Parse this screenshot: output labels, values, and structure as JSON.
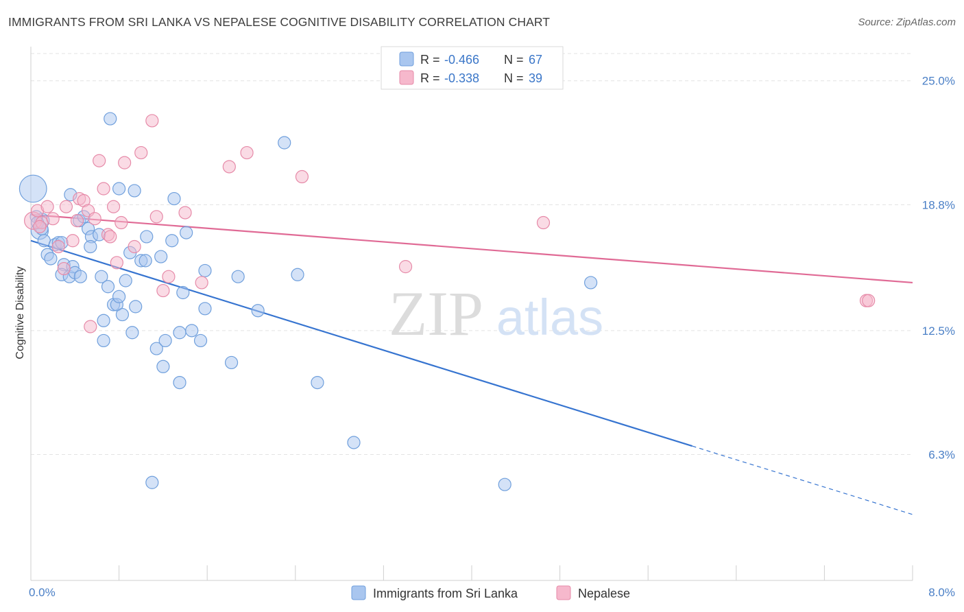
{
  "header": {
    "title": "IMMIGRANTS FROM SRI LANKA VS NEPALESE COGNITIVE DISABILITY CORRELATION CHART",
    "source": "Source: ZipAtlas.com"
  },
  "watermark": {
    "zip": "ZIP",
    "atlas": "atlas"
  },
  "colors": {
    "blue_fill": "#a9c6ef",
    "blue_stroke": "#6f9fdc",
    "blue_line": "#3674d0",
    "pink_fill": "#f6b8cc",
    "pink_stroke": "#e68aa8",
    "pink_line": "#e06a95",
    "grid": "#e3e3e3",
    "axis_text": "#4a7fc6"
  },
  "chart_data": {
    "type": "scatter",
    "xlabel": "",
    "ylabel": "Cognitive Disability",
    "xlim": [
      0.0,
      8.0
    ],
    "ylim": [
      0.0,
      26.5
    ],
    "x_tick_labels": [
      {
        "value": 0.0,
        "label": "0.0%"
      },
      {
        "value": 8.0,
        "label": "8.0%"
      }
    ],
    "y_tick_labels": [
      {
        "value": 6.3,
        "label": "6.3%"
      },
      {
        "value": 12.5,
        "label": "12.5%"
      },
      {
        "value": 18.8,
        "label": "18.8%"
      },
      {
        "value": 25.0,
        "label": "25.0%"
      }
    ],
    "grid": "horizontal-dashed",
    "legend": {
      "placement": "top-center",
      "entries": [
        {
          "r_label": "R =",
          "r_value": "-0.466",
          "n_label": "N =",
          "n_value": "67"
        },
        {
          "r_label": "R =",
          "r_value": "-0.338",
          "n_label": "N =",
          "n_value": "39"
        }
      ]
    },
    "series": [
      {
        "name": "Immigrants from Sri Lanka",
        "color": "#a9c6ef",
        "trend": {
          "x0": 0.0,
          "y0": 17.0,
          "x1": 8.0,
          "y1": 3.3,
          "solid_until_x": 6.0
        },
        "points": [
          [
            0.02,
            19.6,
            2.2
          ],
          [
            0.08,
            17.5,
            1.4
          ],
          [
            0.1,
            18.0,
            1.2
          ],
          [
            0.05,
            18.2,
            1.0
          ],
          [
            0.12,
            17.0,
            1.0
          ],
          [
            0.15,
            16.3,
            1.0
          ],
          [
            0.18,
            16.1,
            1.0
          ],
          [
            0.22,
            16.8,
            1.0
          ],
          [
            0.25,
            16.9,
            1.0
          ],
          [
            0.28,
            16.9,
            1.0
          ],
          [
            0.3,
            15.8,
            1.0
          ],
          [
            0.28,
            15.3,
            1.0
          ],
          [
            0.35,
            15.2,
            1.0
          ],
          [
            0.38,
            15.7,
            1.0
          ],
          [
            0.4,
            15.4,
            1.0
          ],
          [
            0.45,
            15.2,
            1.0
          ],
          [
            0.36,
            19.3,
            1.0
          ],
          [
            0.44,
            18.0,
            1.0
          ],
          [
            0.48,
            18.2,
            1.0
          ],
          [
            0.52,
            17.6,
            1.0
          ],
          [
            0.55,
            17.2,
            1.0
          ],
          [
            0.54,
            16.7,
            1.0
          ],
          [
            0.62,
            17.3,
            1.0
          ],
          [
            0.64,
            15.2,
            1.0
          ],
          [
            0.66,
            13.0,
            1.0
          ],
          [
            0.66,
            12.0,
            1.0
          ],
          [
            0.7,
            14.7,
            1.0
          ],
          [
            0.75,
            13.8,
            1.0
          ],
          [
            0.78,
            13.8,
            1.0
          ],
          [
            0.8,
            14.2,
            1.0
          ],
          [
            0.83,
            13.3,
            1.0
          ],
          [
            0.86,
            15.0,
            1.0
          ],
          [
            0.9,
            16.4,
            1.0
          ],
          [
            0.92,
            12.4,
            1.0
          ],
          [
            0.95,
            13.7,
            1.0
          ],
          [
            1.0,
            16.0,
            1.0
          ],
          [
            1.05,
            17.2,
            1.0
          ],
          [
            1.04,
            16.0,
            1.0
          ],
          [
            1.1,
            4.9,
            1.0
          ],
          [
            1.14,
            11.6,
            1.0
          ],
          [
            1.2,
            10.7,
            1.0
          ],
          [
            1.22,
            12.0,
            1.0
          ],
          [
            1.18,
            16.2,
            1.0
          ],
          [
            1.28,
            17.0,
            1.0
          ],
          [
            1.3,
            19.1,
            1.0
          ],
          [
            1.35,
            12.4,
            1.0
          ],
          [
            1.35,
            9.9,
            1.0
          ],
          [
            1.38,
            14.4,
            1.0
          ],
          [
            1.41,
            17.4,
            1.0
          ],
          [
            1.46,
            12.5,
            1.0
          ],
          [
            1.54,
            12.0,
            1.0
          ],
          [
            1.58,
            13.6,
            1.0
          ],
          [
            1.58,
            15.5,
            1.0
          ],
          [
            1.82,
            10.9,
            1.0
          ],
          [
            1.88,
            15.2,
            1.0
          ],
          [
            2.06,
            13.5,
            1.0
          ],
          [
            2.3,
            21.9,
            1.0
          ],
          [
            2.42,
            15.3,
            1.0
          ],
          [
            2.6,
            9.9,
            1.0
          ],
          [
            2.93,
            6.9,
            1.0
          ],
          [
            0.72,
            23.1,
            1.0
          ],
          [
            0.8,
            19.6,
            1.0
          ],
          [
            0.94,
            19.5,
            1.0
          ],
          [
            4.3,
            4.8,
            1.0
          ],
          [
            5.08,
            14.9,
            1.0
          ],
          [
            0.06,
            17.9,
            1.0
          ],
          [
            0.1,
            17.6,
            1.0
          ]
        ]
      },
      {
        "name": "Nepalese",
        "color": "#f6b8cc",
        "trend": {
          "x0": 0.0,
          "y0": 18.3,
          "x1": 8.0,
          "y1": 14.9
        },
        "points": [
          [
            0.02,
            18.0,
            1.4
          ],
          [
            0.06,
            18.5,
            1.0
          ],
          [
            0.1,
            17.9,
            1.0
          ],
          [
            0.15,
            18.7,
            1.0
          ],
          [
            0.2,
            18.1,
            1.0
          ],
          [
            0.25,
            16.7,
            1.0
          ],
          [
            0.3,
            15.6,
            1.0
          ],
          [
            0.32,
            18.7,
            1.0
          ],
          [
            0.38,
            17.0,
            1.0
          ],
          [
            0.42,
            18.0,
            1.0
          ],
          [
            0.44,
            19.1,
            1.0
          ],
          [
            0.48,
            19.0,
            1.0
          ],
          [
            0.52,
            18.5,
            1.0
          ],
          [
            0.54,
            12.7,
            1.0
          ],
          [
            0.58,
            18.1,
            1.0
          ],
          [
            0.62,
            21.0,
            1.0
          ],
          [
            0.66,
            19.6,
            1.0
          ],
          [
            0.7,
            17.3,
            1.0
          ],
          [
            0.72,
            17.2,
            1.0
          ],
          [
            0.75,
            18.7,
            1.0
          ],
          [
            0.78,
            15.9,
            1.0
          ],
          [
            0.82,
            17.9,
            1.0
          ],
          [
            0.85,
            20.9,
            1.0
          ],
          [
            0.94,
            16.7,
            1.0
          ],
          [
            1.0,
            21.4,
            1.0
          ],
          [
            1.1,
            23.0,
            1.0
          ],
          [
            1.14,
            18.2,
            1.0
          ],
          [
            1.2,
            14.5,
            1.0
          ],
          [
            1.25,
            15.2,
            1.0
          ],
          [
            1.4,
            18.4,
            1.0
          ],
          [
            1.55,
            14.9,
            1.0
          ],
          [
            1.8,
            20.7,
            1.0
          ],
          [
            1.96,
            21.4,
            1.0
          ],
          [
            2.46,
            20.2,
            1.0
          ],
          [
            3.4,
            15.7,
            1.0
          ],
          [
            4.65,
            17.9,
            1.0
          ],
          [
            7.58,
            14.0,
            1.0
          ],
          [
            7.6,
            14.0,
            1.0
          ],
          [
            0.08,
            17.7,
            1.0
          ]
        ]
      }
    ]
  }
}
